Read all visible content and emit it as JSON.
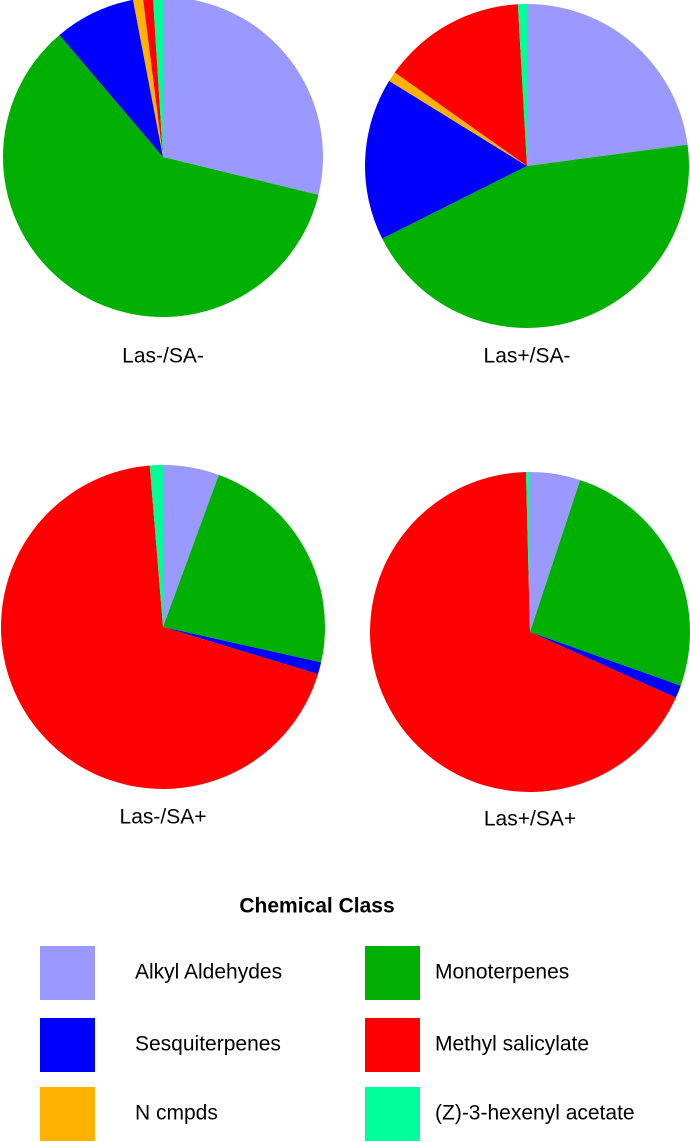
{
  "chart_data": [
    {
      "type": "pie",
      "title": "Las-/SA-",
      "categories": [
        "Alkyl Aldehydes",
        "Monoterpenes",
        "Sesquiterpenes",
        "N cmpds",
        "Methyl salicylate",
        "(Z)-3-hexenyl acetate"
      ],
      "values": [
        28.8,
        60,
        8.2,
        1,
        1,
        1
      ],
      "colors": [
        "#9999ff",
        "#00b000",
        "#0000ff",
        "#ffb300",
        "#ff0000",
        "#00ff99"
      ]
    },
    {
      "type": "pie",
      "title": "Las+/SA-",
      "categories": [
        "Alkyl Aldehydes",
        "Monoterpenes",
        "Sesquiterpenes",
        "N cmpds",
        "Methyl salicylate",
        "(Z)-3-hexenyl acetate"
      ],
      "values": [
        22.9,
        44.7,
        16.2,
        1,
        14.3,
        0.9
      ],
      "colors": [
        "#9999ff",
        "#00b000",
        "#0000ff",
        "#ffb300",
        "#ff0000",
        "#00ff99"
      ]
    },
    {
      "type": "pie",
      "title": "Las-/SA+",
      "categories": [
        "Alkyl Aldehydes",
        "Monoterpenes",
        "Sesquiterpenes",
        "N cmpds",
        "Methyl salicylate",
        "(Z)-3-hexenyl acetate"
      ],
      "values": [
        5.6,
        22.9,
        1.2,
        0,
        69,
        1.3
      ],
      "colors": [
        "#9999ff",
        "#00b000",
        "#0000ff",
        "#ffb300",
        "#ff0000",
        "#00ff99"
      ]
    },
    {
      "type": "pie",
      "title": "Las+/SA+",
      "categories": [
        "Alkyl Aldehydes",
        "Monoterpenes",
        "Sesquiterpenes",
        "N cmpds",
        "Methyl salicylate",
        "(Z)-3-hexenyl acetate"
      ],
      "values": [
        5.1,
        25.5,
        1.3,
        0,
        68.2,
        0.4
      ],
      "colors": [
        "#9999ff",
        "#00b000",
        "#0000ff",
        "#ffb300",
        "#ff0000",
        "#00ff99"
      ]
    }
  ],
  "legend": {
    "title": "Chemical Class"
  }
}
